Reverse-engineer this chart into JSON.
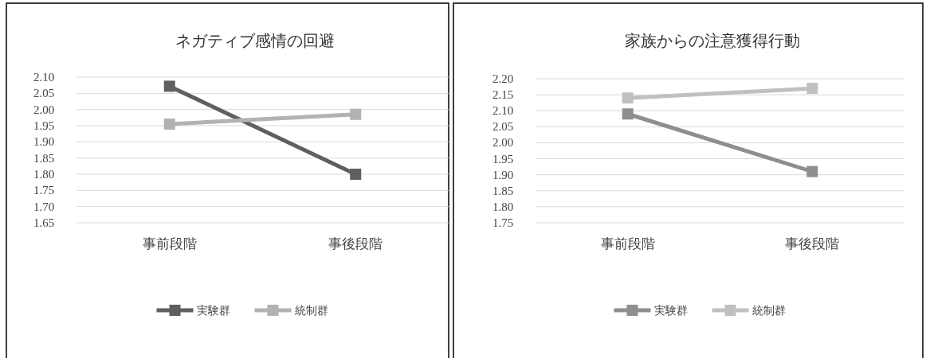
{
  "chart_data": [
    {
      "type": "line",
      "title": "ネガティブ感情の回避",
      "categories": [
        "事前段階",
        "事後段階"
      ],
      "series": [
        {
          "name": "実験群",
          "color": "#5f5f5f",
          "values": [
            2.072,
            1.8
          ]
        },
        {
          "name": "統制群",
          "color": "#b2b2b2",
          "values": [
            1.955,
            1.985
          ]
        }
      ],
      "ylim": [
        1.65,
        2.1
      ],
      "yticks": [
        1.65,
        {
          "value": 1.7,
          "label": "1.70"
        },
        1.75,
        {
          "value": 1.8,
          "label": "1.80"
        },
        1.85,
        {
          "value": 1.9,
          "label": "1.90"
        },
        1.95,
        {
          "value": 2.0,
          "label": "2.00"
        },
        2.05,
        {
          "value": 2.1,
          "label": "2.10"
        }
      ],
      "grid": "y",
      "legend": "bottom",
      "marker": "square"
    },
    {
      "type": "line",
      "title": "家族からの注意獲得行動",
      "categories": [
        "事前段階",
        "事後段階"
      ],
      "series": [
        {
          "name": "実験群",
          "color": "#8e8e8e",
          "values": [
            2.09,
            1.91
          ]
        },
        {
          "name": "統制群",
          "color": "#c0c0c0",
          "values": [
            2.14,
            2.17
          ]
        }
      ],
      "ylim": [
        1.75,
        2.2
      ],
      "yticks": [
        1.75,
        {
          "value": 1.8,
          "label": "1.80"
        },
        1.85,
        {
          "value": 1.9,
          "label": "1.90"
        },
        1.95,
        {
          "value": 2.0,
          "label": "2.00"
        },
        2.05,
        {
          "value": 2.1,
          "label": "2.10"
        },
        2.15,
        {
          "value": 2.2,
          "label": "2.20"
        }
      ],
      "grid": "y",
      "legend": "bottom",
      "marker": "square"
    }
  ]
}
